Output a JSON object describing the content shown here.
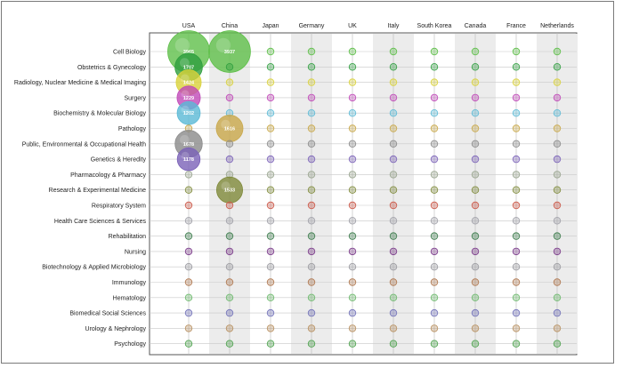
{
  "chart_data": {
    "type": "scatter",
    "title": "",
    "xlabel": "",
    "ylabel": "",
    "countries": [
      "USA",
      "China",
      "Japan",
      "Germany",
      "UK",
      "Italy",
      "South Korea",
      "Canada",
      "France",
      "Netherlands"
    ],
    "categories": [
      "Cell Biology",
      "Obstetrics & Gynecology",
      "Radiology, Nuclear Medicine & Medical Imaging",
      "Surgery",
      "Biochemistry & Molecular Biology",
      "Pathology",
      "Public, Environmental & Occupational Health",
      "Genetics & Heredity",
      "Pharmacology & Pharmacy",
      "Research & Experimental Medicine",
      "Respiratory System",
      "Health Care Sciences & Services",
      "Rehabilitation",
      "Nursing",
      "Biotechnology & Applied Microbiology",
      "Immunology",
      "Hematology",
      "Biomedical Social Sciences",
      "Urology & Nephrology",
      "Psychology"
    ],
    "category_colors": [
      "#5fbf4a",
      "#2e9e3e",
      "#d9d23a",
      "#c048b8",
      "#5ab9d6",
      "#c9a84a",
      "#8a8a8a",
      "#7b62b8",
      "#9aa590",
      "#7f8a3a",
      "#cc5a4a",
      "#a0a0a8",
      "#3a7a4a",
      "#7a3a8a",
      "#9a9aa0",
      "#b07850",
      "#6ab86a",
      "#7070b8",
      "#b89060",
      "#4aa04a"
    ],
    "labeled_values": [
      {
        "country": "USA",
        "category": "Cell Biology",
        "value": 3965
      },
      {
        "country": "China",
        "category": "Cell Biology",
        "value": 3937
      },
      {
        "country": "USA",
        "category": "Obstetrics & Gynecology",
        "value": 1707
      },
      {
        "country": "USA",
        "category": "Radiology, Nuclear Medicine & Medical Imaging",
        "value": 1424
      },
      {
        "country": "USA",
        "category": "Surgery",
        "value": 1229
      },
      {
        "country": "USA",
        "category": "Biochemistry & Molecular Biology",
        "value": 1202
      },
      {
        "country": "China",
        "category": "Pathology",
        "value": 1616
      },
      {
        "country": "USA",
        "category": "Public, Environmental & Occupational Health",
        "value": 1678
      },
      {
        "country": "USA",
        "category": "Genetics & Heredity",
        "value": 1178
      },
      {
        "country": "China",
        "category": "Research & Experimental Medicine",
        "value": 1533
      }
    ],
    "default_value": 80,
    "grid": true,
    "legend": "none"
  }
}
